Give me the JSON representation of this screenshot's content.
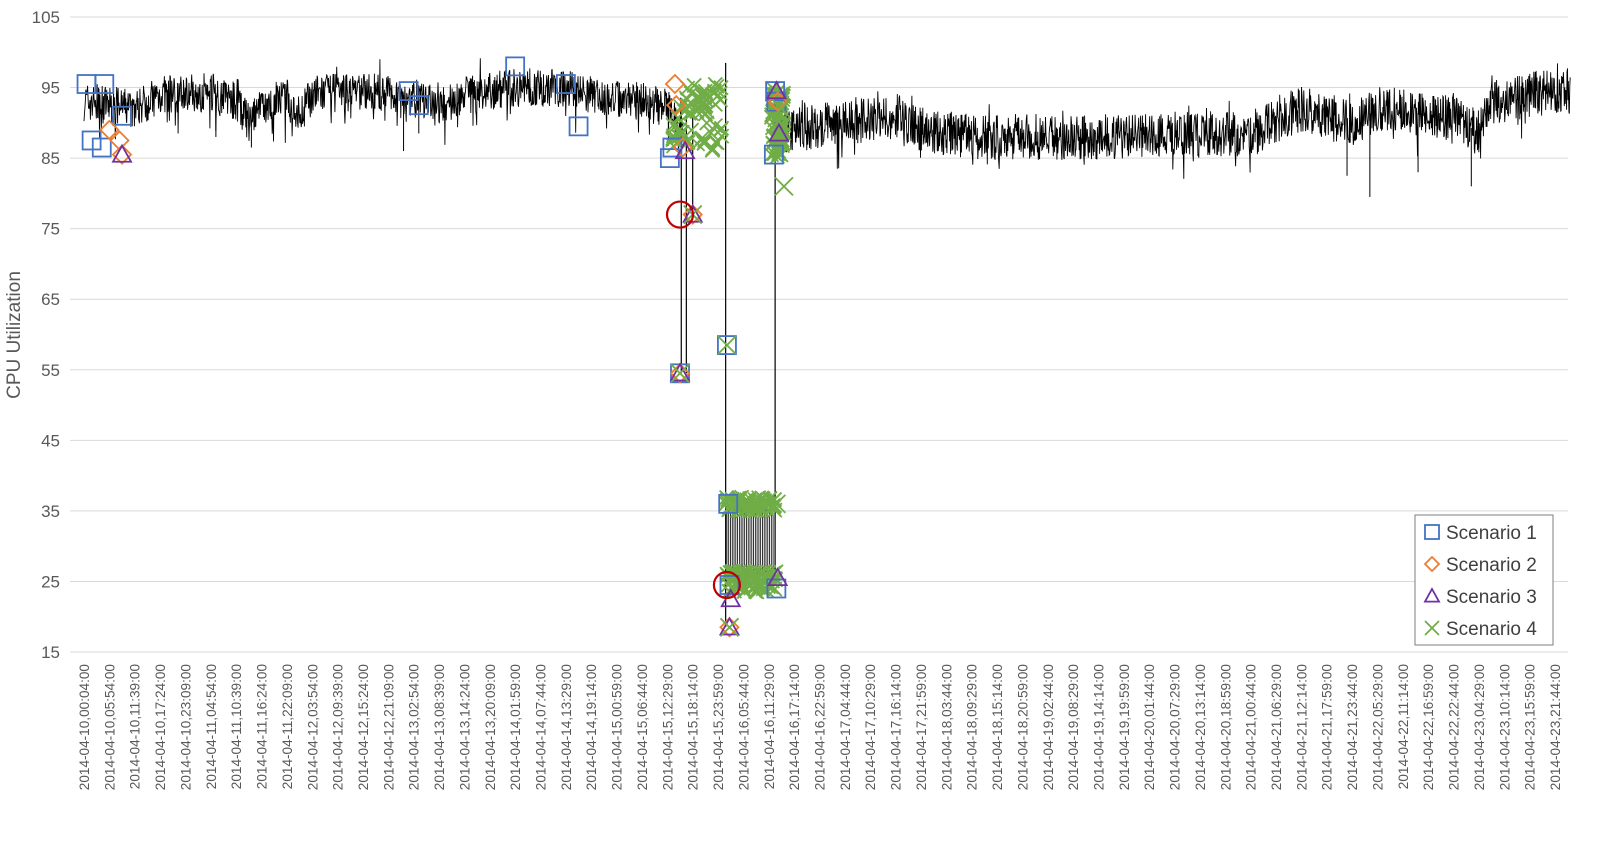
{
  "chart_data": {
    "type": "line",
    "title": "",
    "xlabel": "",
    "ylabel": "CPU Utilization",
    "ylim": [
      15,
      105
    ],
    "yticks": [
      15,
      25,
      35,
      45,
      55,
      65,
      75,
      85,
      95,
      105
    ],
    "grid": "horizontal",
    "legend_position": "bottom-right",
    "x_tick_labels": [
      "2014-04-10,00:04:00",
      "2014-04-10,05:54:00",
      "2014-04-10,11:39:00",
      "2014-04-10,17:24:00",
      "2014-04-10,23:09:00",
      "2014-04-11,04:54:00",
      "2014-04-11,10:39:00",
      "2014-04-11,16:24:00",
      "2014-04-11,22:09:00",
      "2014-04-12,03:54:00",
      "2014-04-12,09:39:00",
      "2014-04-12,15:24:00",
      "2014-04-12,21:09:00",
      "2014-04-13,02:54:00",
      "2014-04-13,08:39:00",
      "2014-04-13,14:24:00",
      "2014-04-13,20:09:00",
      "2014-04-14,01:59:00",
      "2014-04-14,07:44:00",
      "2014-04-14,13:29:00",
      "2014-04-14,19:14:00",
      "2014-04-15,00:59:00",
      "2014-04-15,06:44:00",
      "2014-04-15,12:29:00",
      "2014-04-15,18:14:00",
      "2014-04-15,23:59:00",
      "2014-04-16,05:44:00",
      "2014-04-16,11:29:00",
      "2014-04-16,17:14:00",
      "2014-04-16,22:59:00",
      "2014-04-17,04:44:00",
      "2014-04-17,10:29:00",
      "2014-04-17,16:14:00",
      "2014-04-17,21:59:00",
      "2014-04-18,03:44:00",
      "2014-04-18,09:29:00",
      "2014-04-18,15:14:00",
      "2014-04-18,20:59:00",
      "2014-04-19,02:44:00",
      "2014-04-19,08:29:00",
      "2014-04-19,14:14:00",
      "2014-04-19,19:59:00",
      "2014-04-20,01:44:00",
      "2014-04-20,07:29:00",
      "2014-04-20,13:14:00",
      "2014-04-20,18:59:00",
      "2014-04-21,00:44:00",
      "2014-04-21,06:29:00",
      "2014-04-21,12:14:00",
      "2014-04-21,17:59:00",
      "2014-04-21,23:44:00",
      "2014-04-22,05:29:00",
      "2014-04-22,11:14:00",
      "2014-04-22,16:59:00",
      "2014-04-22,22:44:00",
      "2014-04-23,04:29:00",
      "2014-04-23,10:14:00",
      "2014-04-23,15:59:00",
      "2014-04-23,21:44:00"
    ],
    "cpu_profile": [
      [
        0,
        93
      ],
      [
        2,
        92
      ],
      [
        3,
        94
      ],
      [
        5,
        94.5
      ],
      [
        6,
        93
      ],
      [
        6.5,
        90
      ],
      [
        7,
        92
      ],
      [
        8,
        93.5
      ],
      [
        8.5,
        91
      ],
      [
        9,
        94
      ],
      [
        11,
        94.5
      ],
      [
        12.5,
        94
      ],
      [
        13.5,
        93
      ],
      [
        14,
        92
      ],
      [
        14.5,
        93
      ],
      [
        15,
        94
      ],
      [
        17,
        95
      ],
      [
        19,
        95
      ],
      [
        20,
        94
      ],
      [
        21,
        93.5
      ],
      [
        22,
        93
      ],
      [
        23,
        92
      ],
      [
        23.5,
        90
      ],
      [
        28,
        89
      ],
      [
        30,
        90
      ],
      [
        32,
        91
      ],
      [
        33,
        89
      ],
      [
        35,
        88
      ],
      [
        37,
        88
      ],
      [
        40,
        88
      ],
      [
        43,
        88.5
      ],
      [
        46,
        88.5
      ],
      [
        47,
        90
      ],
      [
        48,
        92
      ],
      [
        49,
        91
      ],
      [
        50,
        90
      ],
      [
        51,
        92
      ],
      [
        52,
        92
      ],
      [
        53,
        91
      ],
      [
        54,
        91
      ],
      [
        55,
        88.5
      ],
      [
        55.5,
        93
      ],
      [
        57,
        94
      ],
      [
        58,
        94.5
      ]
    ],
    "cpu_dips": [
      {
        "x": 6.6,
        "y": 86.5
      },
      {
        "x": 12.6,
        "y": 86
      },
      {
        "x": 49.8,
        "y": 82.5
      },
      {
        "x": 50.7,
        "y": 79.5
      },
      {
        "x": 52.6,
        "y": 83
      },
      {
        "x": 54.7,
        "y": 81
      },
      {
        "x": 5.2,
        "y": 88
      },
      {
        "x": 13.2,
        "y": 88.5
      }
    ],
    "transitions": [
      {
        "x": 23.55,
        "from": 93,
        "to": 54.5
      },
      {
        "x": 23.75,
        "from": 54.5,
        "to": 91
      },
      {
        "x": 24.0,
        "from": 91,
        "to": 77
      },
      {
        "x": 25.3,
        "from": 98.5,
        "to": 18.5
      },
      {
        "x": 27.25,
        "from": 26,
        "to": 95
      },
      {
        "x": 27.45,
        "from": 95,
        "to": 90
      }
    ],
    "series": [
      {
        "name": "Scenario 1",
        "marker": "square",
        "color": "#4472C4",
        "points": [
          [
            0.1,
            95.5
          ],
          [
            0.3,
            87.5
          ],
          [
            0.8,
            95.5
          ],
          [
            0.7,
            86.5
          ],
          [
            1.5,
            91
          ],
          [
            12.8,
            94.5
          ],
          [
            13.2,
            92.5
          ],
          [
            17.0,
            98
          ],
          [
            19.0,
            95.5
          ],
          [
            19.5,
            89.5
          ],
          [
            23.1,
            85
          ],
          [
            23.2,
            86.5
          ],
          [
            23.5,
            54.5
          ],
          [
            25.35,
            58.5
          ],
          [
            25.4,
            36
          ],
          [
            25.45,
            24.5
          ],
          [
            27.3,
            24
          ],
          [
            27.2,
            85.5
          ],
          [
            27.25,
            94.5
          ],
          [
            27.3,
            93
          ]
        ]
      },
      {
        "name": "Scenario 2",
        "marker": "diamond",
        "color": "#ED7D31",
        "points": [
          [
            1.0,
            89
          ],
          [
            1.4,
            87.5
          ],
          [
            1.5,
            85.5
          ],
          [
            23.3,
            95.5
          ],
          [
            23.35,
            92.5
          ],
          [
            23.6,
            86.5
          ],
          [
            23.5,
            54.5
          ],
          [
            24.0,
            77
          ],
          [
            25.45,
            18.5
          ],
          [
            27.35,
            93
          ]
        ]
      },
      {
        "name": "Scenario 3",
        "marker": "triangle",
        "color": "#7030A0",
        "points": [
          [
            1.5,
            85.5
          ],
          [
            23.5,
            54.5
          ],
          [
            24.0,
            77
          ],
          [
            23.7,
            86
          ],
          [
            25.45,
            18.5
          ],
          [
            25.5,
            22.5
          ],
          [
            27.35,
            25.5
          ],
          [
            27.3,
            94.5
          ],
          [
            27.4,
            88.5
          ]
        ]
      },
      {
        "name": "Scenario 4",
        "marker": "x",
        "color": "#70AD47",
        "points": [
          [
            23.5,
            54.5
          ],
          [
            24.0,
            77
          ],
          [
            25.35,
            58.5
          ],
          [
            25.45,
            18.5
          ],
          [
            27.3,
            36
          ],
          [
            27.6,
            81
          ],
          [
            27.5,
            92
          ]
        ]
      }
    ],
    "clusters": [
      {
        "name": "scenario-4-dense-cluster-1",
        "x_start": 23.2,
        "x_end": 25.2,
        "y_min": 86,
        "y_max": 95.5,
        "color": "#70AD47"
      },
      {
        "name": "scenario-4-dense-cluster-2",
        "x_start": 27.1,
        "x_end": 27.6,
        "y_min": 85,
        "y_max": 95,
        "color": "#70AD47"
      },
      {
        "name": "scenario-4-low-cluster",
        "x_start": 25.3,
        "x_end": 27.3,
        "y_min": 23.5,
        "y_max": 26.5,
        "color": "#70AD47"
      },
      {
        "name": "scenario-4-mid-cluster",
        "x_start": 25.3,
        "x_end": 27.3,
        "y_min": 35,
        "y_max": 37,
        "color": "#70AD47"
      }
    ],
    "highlight_circles": [
      {
        "x": 23.5,
        "y": 77,
        "color": "#C00000"
      },
      {
        "x": 25.35,
        "y": 24.5,
        "color": "#C00000"
      }
    ],
    "legend": [
      "Scenario 1",
      "Scenario 2",
      "Scenario 3",
      "Scenario 4"
    ]
  }
}
